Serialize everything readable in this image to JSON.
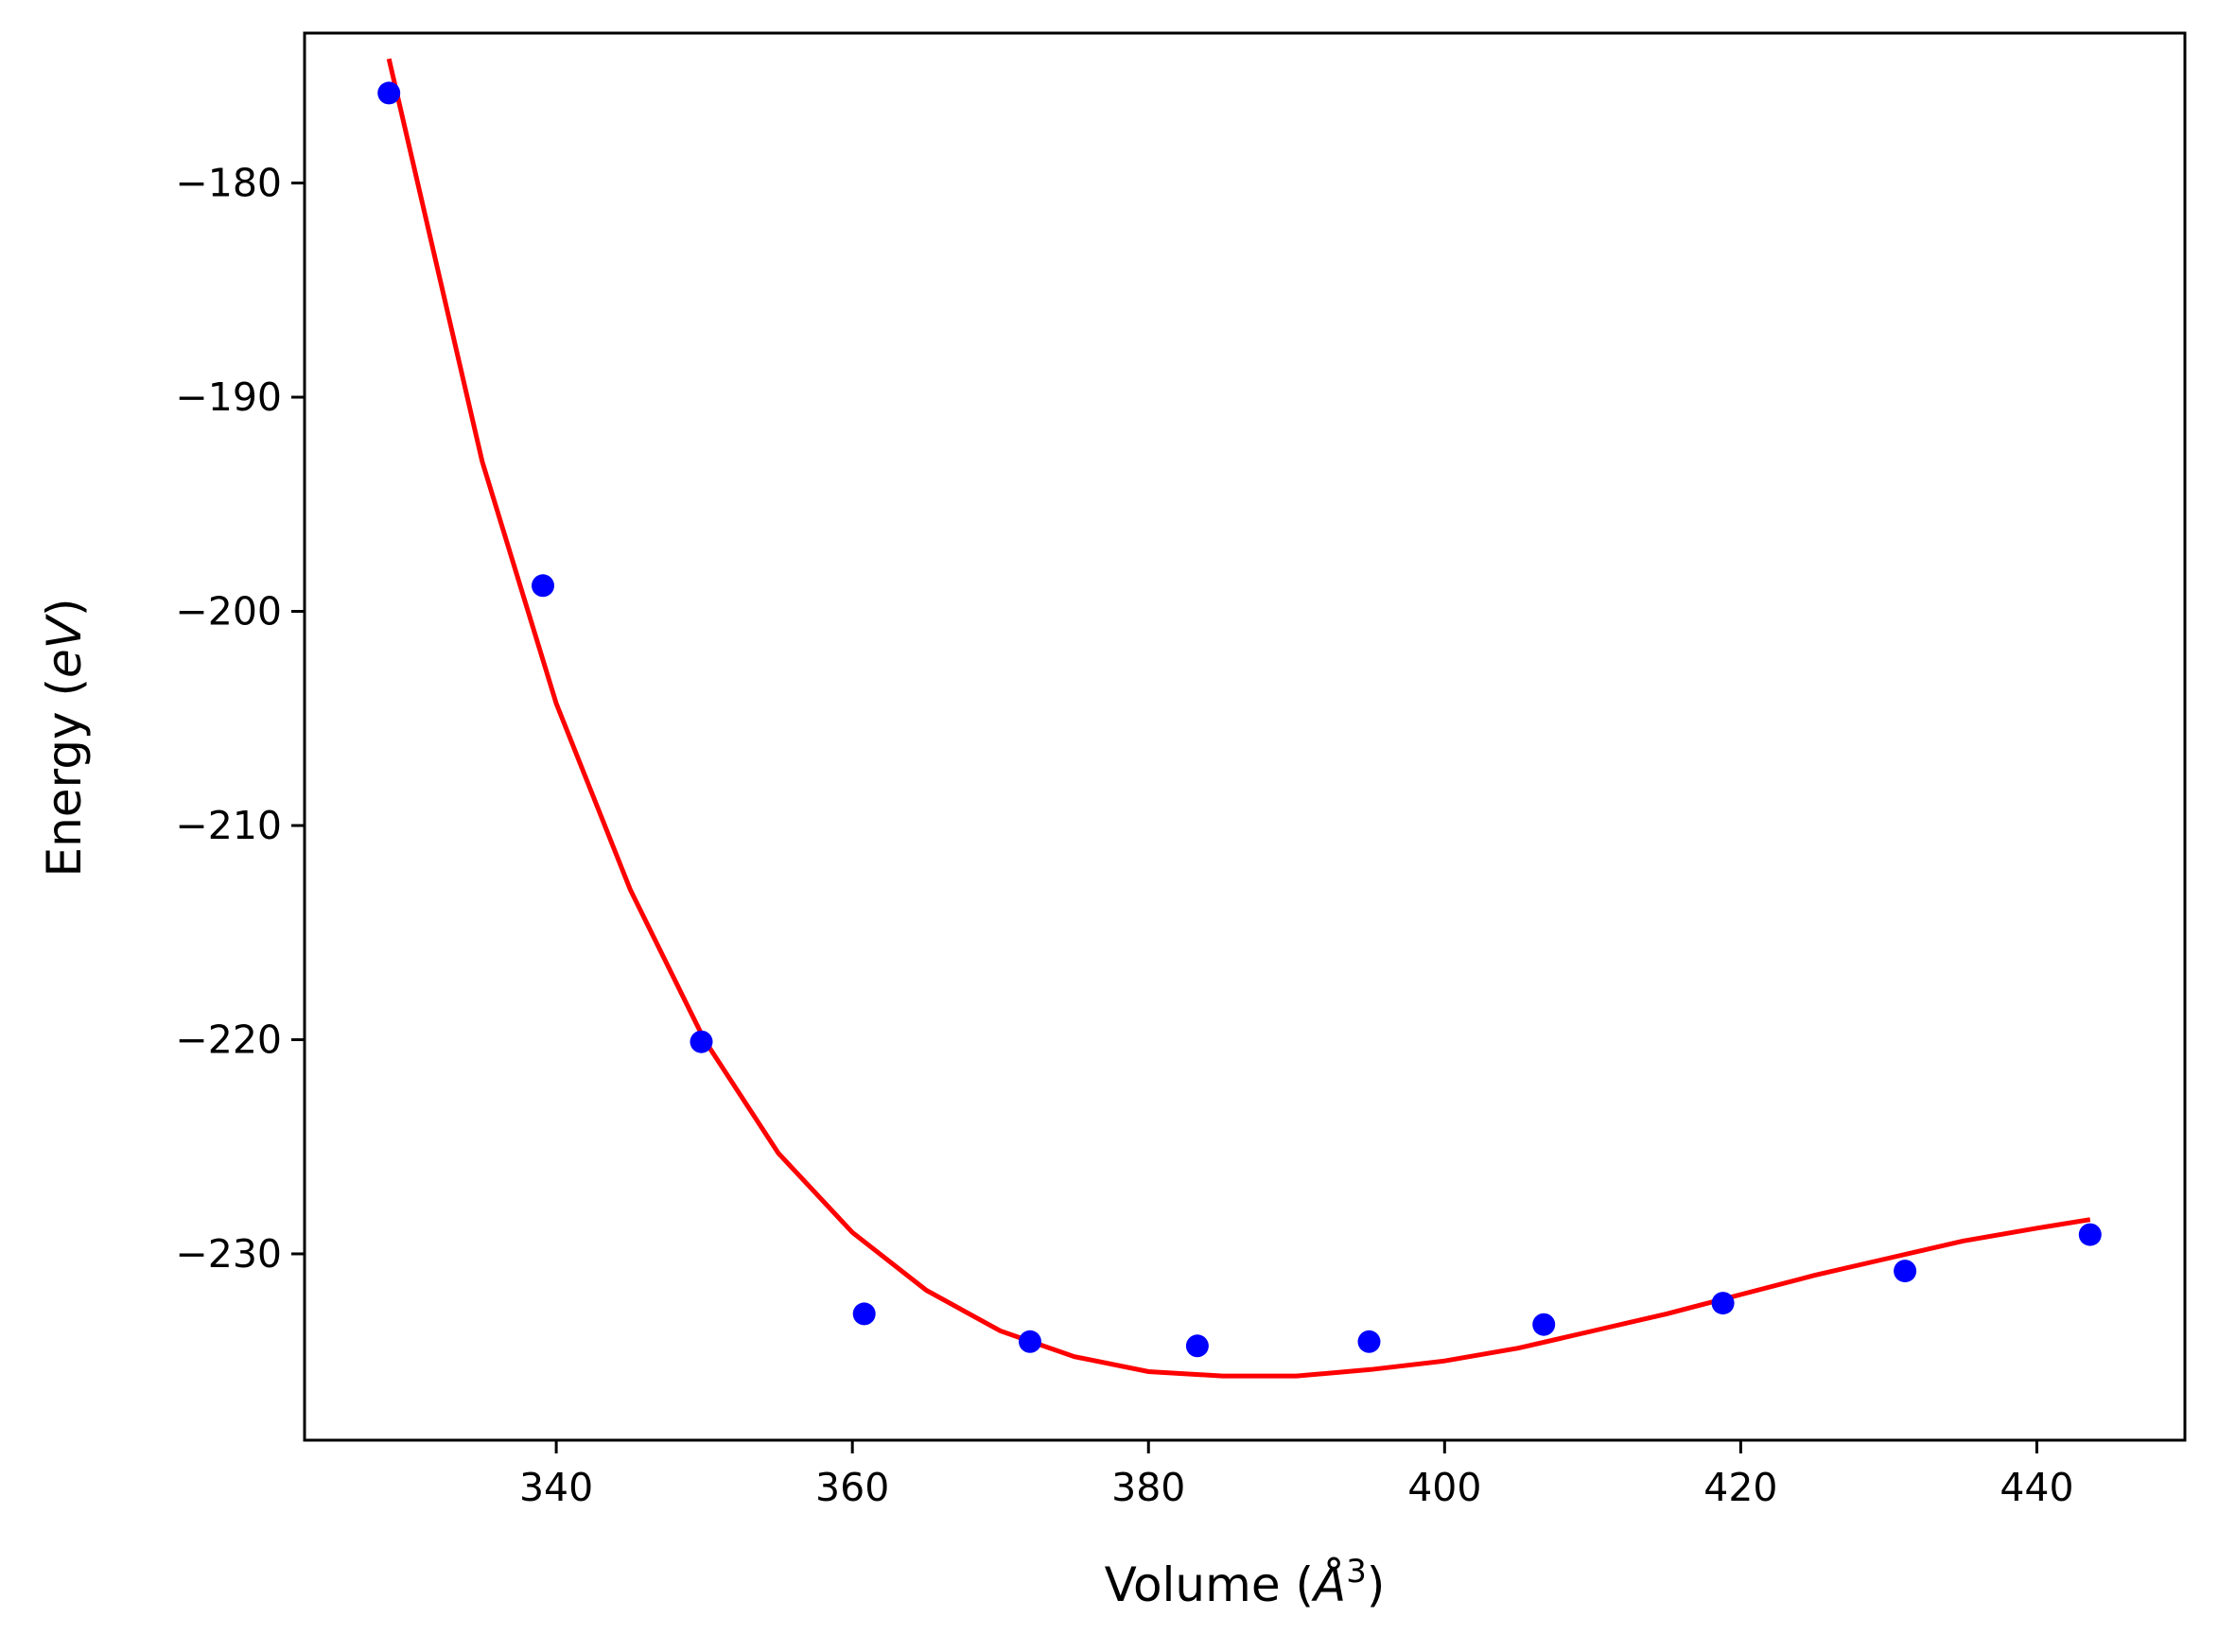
{
  "chart_data": {
    "type": "scatter",
    "title": "",
    "xlabel": {
      "prefix": "Volume (",
      "symbol": "Å",
      "sup": "3",
      "suffix": ")"
    },
    "ylabel": {
      "prefix": "Energy (",
      "unit": "eV",
      "suffix": ")"
    },
    "xlim": [
      323,
      450
    ],
    "ylim": [
      -238.7,
      -173
    ],
    "xticks": [
      340,
      360,
      380,
      400,
      420,
      440
    ],
    "yticks": [
      -180,
      -190,
      -200,
      -210,
      -220,
      -230
    ],
    "xtick_labels": [
      "340",
      "360",
      "380",
      "400",
      "420",
      "440"
    ],
    "ytick_labels": [
      "−180",
      "−190",
      "−200",
      "−210",
      "−220",
      "−230"
    ],
    "grid": false,
    "series": [
      {
        "kind": "points",
        "color": "#0000ff",
        "x": [
          328.7,
          339.1,
          349.8,
          360.8,
          372.0,
          383.3,
          394.9,
          406.7,
          418.8,
          431.1,
          443.6
        ],
        "y": [
          -175.8,
          -198.8,
          -220.1,
          -232.8,
          -234.1,
          -234.3,
          -234.1,
          -233.3,
          -232.3,
          -230.8,
          -229.1
        ]
      },
      {
        "kind": "line",
        "color": "#ff0000",
        "x": [
          328.7,
          335,
          340,
          345,
          350,
          355,
          360,
          365,
          370,
          375,
          380,
          385,
          390,
          395,
          400,
          405,
          410,
          415,
          420,
          425,
          430,
          435,
          440,
          443.6
        ],
        "y": [
          -174.2,
          -193.0,
          -204.3,
          -213.0,
          -220.0,
          -225.3,
          -229.0,
          -231.7,
          -233.6,
          -234.8,
          -235.5,
          -235.7,
          -235.7,
          -235.4,
          -235.0,
          -234.4,
          -233.6,
          -232.8,
          -231.9,
          -231.0,
          -230.2,
          -229.4,
          -228.8,
          -228.4
        ]
      }
    ]
  }
}
